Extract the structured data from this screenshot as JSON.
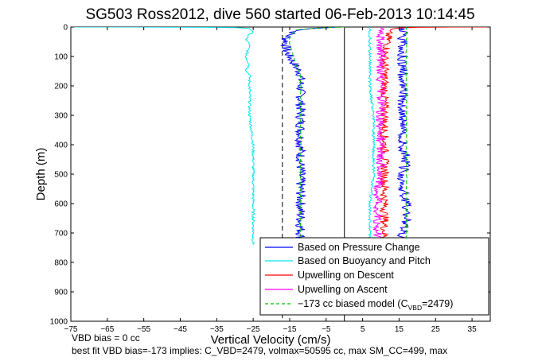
{
  "chart_data": {
    "type": "line",
    "title": "SG503 Ross2012, dive 560 started 06-Feb-2013 10:14:45",
    "xlabel": "Vertical Velocity (cm/s)",
    "ylabel": "Depth (m)",
    "xlim": [
      -75,
      40
    ],
    "ylim": [
      1000,
      0
    ],
    "xticks": [
      -75,
      -65,
      -55,
      -45,
      -35,
      -25,
      -15,
      -5,
      5,
      15,
      25,
      35
    ],
    "yticks": [
      0,
      100,
      200,
      300,
      400,
      500,
      600,
      700,
      800,
      900,
      1000
    ],
    "grid": false,
    "legend_position": "bottom-right",
    "legend": [
      {
        "label": "Based on Pressure Change",
        "color": "#0000ff",
        "style": "solid"
      },
      {
        "label": "Based on Buoyancy and Pitch",
        "color": "#00e5ee",
        "style": "solid"
      },
      {
        "label": "Upwelling on Descent",
        "color": "#ff0000",
        "style": "solid"
      },
      {
        "label": "Upwelling on Ascent",
        "color": "#ff00ff",
        "style": "solid"
      },
      {
        "label_prefix": "−173 cc biased model (C",
        "label_sub": "VBD",
        "label_suffix": "=2479)",
        "color": "#00c000",
        "style": "dashed"
      }
    ],
    "reference_lines": [
      {
        "x": 0,
        "style": "solid",
        "color": "#000000"
      },
      {
        "x": -17,
        "style": "dashed",
        "color": "#000000"
      }
    ],
    "notes": [
      "VBD bias = 0 cc",
      "best fit VBD bias=-173 implies: C_VBD=2479, volmax=50595 cc, max SM_CC=499, max"
    ],
    "series": [
      {
        "name": "Based on Pressure Change",
        "color": "#0000ff",
        "segments": [
          {
            "x": [
              -2,
              -8,
              -13,
              -15,
              -16,
              -16,
              -16,
              -15,
              -14,
              -13,
              -12,
              -12,
              -12,
              -12,
              -12,
              -12,
              -12,
              -12,
              -12,
              -12,
              -12,
              -12,
              -12
            ],
            "y": [
              0,
              5,
              12,
              25,
              40,
              60,
              80,
              100,
              120,
              140,
              160,
              200,
              250,
              300,
              350,
              400,
              450,
              500,
              550,
              600,
              650,
              700,
              730
            ]
          },
          {
            "x": [
              15,
              16,
              17,
              17,
              16,
              16,
              17,
              16,
              16,
              16,
              16,
              16,
              16,
              16,
              16,
              16,
              16,
              16,
              16,
              16,
              16
            ],
            "y": [
              740,
              700,
              650,
              600,
              550,
              500,
              450,
              400,
              350,
              300,
              250,
              200,
              150,
              100,
              60,
              40,
              20,
              10,
              5,
              2,
              0
            ]
          }
        ]
      },
      {
        "name": "Based on Buoyancy and Pitch",
        "color": "#00e5ee",
        "segments": [
          {
            "x": [
              -75,
              -60,
              -40,
              -30,
              -26,
              -25,
              -26,
              -27,
              -26,
              -27,
              -26,
              -27,
              -26,
              -26,
              -26,
              -26,
              -25,
              -25,
              -25,
              -25,
              -25,
              -25,
              -25
            ],
            "y": [
              0,
              0,
              1,
              2,
              5,
              15,
              25,
              40,
              60,
              100,
              130,
              150,
              160,
              200,
              260,
              300,
              400,
              500,
              550,
              600,
              650,
              700,
              740
            ]
          },
          {
            "x": [
              7,
              7,
              7,
              8,
              8,
              8,
              7,
              7,
              7,
              7,
              7,
              7,
              7
            ],
            "y": [
              740,
              700,
              600,
              500,
              400,
              300,
              200,
              150,
              100,
              50,
              20,
              5,
              0
            ]
          }
        ]
      },
      {
        "name": "Upwelling on Descent",
        "color": "#ff0000",
        "segments": [
          {
            "x": [
              40,
              30,
              20,
              14,
              12,
              12,
              11,
              11,
              11,
              11,
              11,
              11,
              11,
              11,
              11,
              11
            ],
            "y": [
              0,
              0,
              1,
              3,
              10,
              50,
              100,
              150,
              200,
              300,
              400,
              500,
              550,
              600,
              650,
              740
            ]
          }
        ]
      },
      {
        "name": "Upwelling on Ascent",
        "color": "#ff00ff",
        "segments": [
          {
            "x": [
              9,
              9,
              9,
              9,
              9,
              10,
              10,
              10,
              10,
              10,
              10,
              10,
              10,
              10
            ],
            "y": [
              740,
              700,
              650,
              600,
              550,
              500,
              450,
              400,
              300,
              200,
              150,
              100,
              50,
              0
            ]
          }
        ]
      },
      {
        "name": "−173 cc biased model",
        "color": "#00c000",
        "dashed": true,
        "segments": [
          {
            "x": [
              0,
              -7,
              -13,
              -15,
              -15,
              -14,
              -13,
              -12,
              -12,
              -12,
              -12,
              -12,
              -12,
              -12,
              -12,
              -12,
              -12,
              -12
            ],
            "y": [
              0,
              3,
              10,
              30,
              60,
              100,
              140,
              160,
              200,
              300,
              400,
              500,
              550,
              600,
              650,
              700,
              720,
              740
            ]
          },
          {
            "x": [
              17,
              17,
              17,
              17,
              17,
              17,
              17,
              17,
              17,
              17,
              17,
              17,
              17,
              17
            ],
            "y": [
              740,
              700,
              650,
              600,
              500,
              400,
              300,
              250,
              200,
              150,
              100,
              50,
              10,
              0
            ]
          }
        ]
      }
    ]
  }
}
